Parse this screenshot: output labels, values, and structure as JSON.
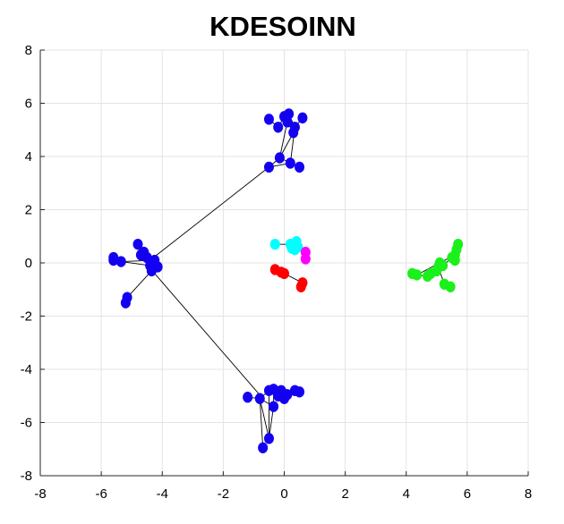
{
  "chart_data": {
    "type": "scatter",
    "title": "KDESOINN",
    "xlabel": "",
    "ylabel": "",
    "xlim": [
      -8,
      8
    ],
    "ylim": [
      -8,
      8
    ],
    "xticks": [
      -8,
      -6,
      -4,
      -2,
      0,
      2,
      4,
      6,
      8
    ],
    "yticks": [
      -8,
      -6,
      -4,
      -2,
      0,
      2,
      4,
      6,
      8
    ],
    "grid": true,
    "colors": {
      "blue": "#1400f0",
      "cyan": "#00ffff",
      "magenta": "#ff00ff",
      "red": "#ff0000",
      "green": "#1af01a",
      "edge": "#000000"
    },
    "clusters": [
      {
        "color": "blue",
        "points": [
          [
            -0.5,
            5.4
          ],
          [
            -0.2,
            5.1
          ],
          [
            0.0,
            5.5
          ],
          [
            0.1,
            5.3
          ],
          [
            0.15,
            5.6
          ],
          [
            0.3,
            4.9
          ],
          [
            0.35,
            5.1
          ],
          [
            0.6,
            5.45
          ],
          [
            -0.5,
            3.6
          ],
          [
            -0.15,
            3.95
          ],
          [
            0.2,
            3.75
          ],
          [
            0.5,
            3.6
          ]
        ],
        "edges": [
          [
            0,
            1
          ],
          [
            1,
            2
          ],
          [
            2,
            3
          ],
          [
            3,
            5
          ],
          [
            4,
            6
          ],
          [
            5,
            6
          ],
          [
            3,
            9
          ],
          [
            5,
            9
          ],
          [
            6,
            10
          ],
          [
            9,
            8
          ],
          [
            9,
            11
          ],
          [
            10,
            11
          ],
          [
            8,
            10
          ],
          [
            2,
            4
          ],
          [
            6,
            7
          ]
        ]
      },
      {
        "color": "blue",
        "points": [
          [
            -5.6,
            0.2
          ],
          [
            -5.6,
            0.1
          ],
          [
            -5.35,
            0.05
          ],
          [
            -4.8,
            0.7
          ],
          [
            -4.7,
            0.3
          ],
          [
            -4.6,
            0.4
          ],
          [
            -4.5,
            0.2
          ],
          [
            -4.4,
            -0.1
          ],
          [
            -4.35,
            -0.3
          ],
          [
            -4.25,
            0.1
          ],
          [
            -4.15,
            -0.15
          ],
          [
            -5.15,
            -1.3
          ],
          [
            -5.2,
            -1.5
          ]
        ],
        "edges": [
          [
            0,
            2
          ],
          [
            1,
            2
          ],
          [
            2,
            7
          ],
          [
            2,
            9
          ],
          [
            3,
            6
          ],
          [
            4,
            7
          ],
          [
            5,
            9
          ],
          [
            6,
            10
          ],
          [
            7,
            8
          ],
          [
            8,
            11
          ],
          [
            11,
            12
          ],
          [
            9,
            10
          ],
          [
            4,
            5
          ],
          [
            3,
            4
          ]
        ]
      },
      {
        "color": "blue",
        "points": [
          [
            -1.2,
            -5.05
          ],
          [
            -0.8,
            -5.1
          ],
          [
            -0.5,
            -4.8
          ],
          [
            -0.35,
            -4.75
          ],
          [
            -0.2,
            -5.0
          ],
          [
            -0.1,
            -4.8
          ],
          [
            0.0,
            -5.1
          ],
          [
            0.1,
            -4.95
          ],
          [
            0.35,
            -4.8
          ],
          [
            0.5,
            -4.85
          ],
          [
            -0.35,
            -5.4
          ],
          [
            -0.5,
            -6.6
          ],
          [
            -0.7,
            -6.95
          ]
        ],
        "edges": [
          [
            0,
            1
          ],
          [
            1,
            2
          ],
          [
            1,
            10
          ],
          [
            1,
            11
          ],
          [
            1,
            12
          ],
          [
            2,
            3
          ],
          [
            3,
            4
          ],
          [
            4,
            5
          ],
          [
            4,
            6
          ],
          [
            6,
            7
          ],
          [
            7,
            8
          ],
          [
            8,
            9
          ],
          [
            2,
            11
          ],
          [
            10,
            11
          ],
          [
            3,
            10
          ]
        ]
      },
      {
        "color": "cyan",
        "points": [
          [
            -0.3,
            0.7
          ],
          [
            0.2,
            0.7
          ],
          [
            0.25,
            0.55
          ],
          [
            0.35,
            0.5
          ],
          [
            0.4,
            0.8
          ],
          [
            0.45,
            0.6
          ]
        ],
        "edges": [
          [
            0,
            1
          ],
          [
            1,
            3
          ],
          [
            2,
            4
          ],
          [
            3,
            5
          ]
        ]
      },
      {
        "color": "magenta",
        "points": [
          [
            0.7,
            0.4
          ],
          [
            0.7,
            0.15
          ]
        ],
        "edges": [
          [
            0,
            1
          ]
        ]
      },
      {
        "color": "red",
        "points": [
          [
            -0.3,
            -0.25
          ],
          [
            -0.1,
            -0.35
          ],
          [
            0.0,
            -0.4
          ],
          [
            0.6,
            -0.75
          ],
          [
            0.55,
            -0.9
          ]
        ],
        "edges": [
          [
            0,
            1
          ],
          [
            1,
            2
          ],
          [
            2,
            3
          ],
          [
            3,
            4
          ]
        ]
      },
      {
        "color": "green",
        "points": [
          [
            4.2,
            -0.4
          ],
          [
            4.35,
            -0.45
          ],
          [
            4.7,
            -0.5
          ],
          [
            4.8,
            -0.4
          ],
          [
            5.0,
            -0.3
          ],
          [
            5.05,
            -0.15
          ],
          [
            5.1,
            0.0
          ],
          [
            5.2,
            -0.1
          ],
          [
            5.25,
            -0.8
          ],
          [
            5.45,
            -0.9
          ],
          [
            5.5,
            0.2
          ],
          [
            5.6,
            0.3
          ],
          [
            5.65,
            0.5
          ],
          [
            5.7,
            0.7
          ],
          [
            5.6,
            0.1
          ]
        ],
        "edges": [
          [
            0,
            1
          ],
          [
            1,
            2
          ],
          [
            2,
            3
          ],
          [
            3,
            4
          ],
          [
            4,
            5
          ],
          [
            5,
            6
          ],
          [
            6,
            7
          ],
          [
            7,
            10
          ],
          [
            10,
            11
          ],
          [
            11,
            12
          ],
          [
            12,
            13
          ],
          [
            11,
            14
          ],
          [
            5,
            8
          ],
          [
            8,
            9
          ],
          [
            2,
            7
          ],
          [
            1,
            11
          ]
        ]
      }
    ],
    "links": [
      {
        "from": [
          -4.4,
          0.1
        ],
        "to": [
          -0.5,
          3.6
        ]
      },
      {
        "from": [
          -4.4,
          -0.2
        ],
        "to": [
          -0.7,
          -5.1
        ]
      }
    ]
  }
}
